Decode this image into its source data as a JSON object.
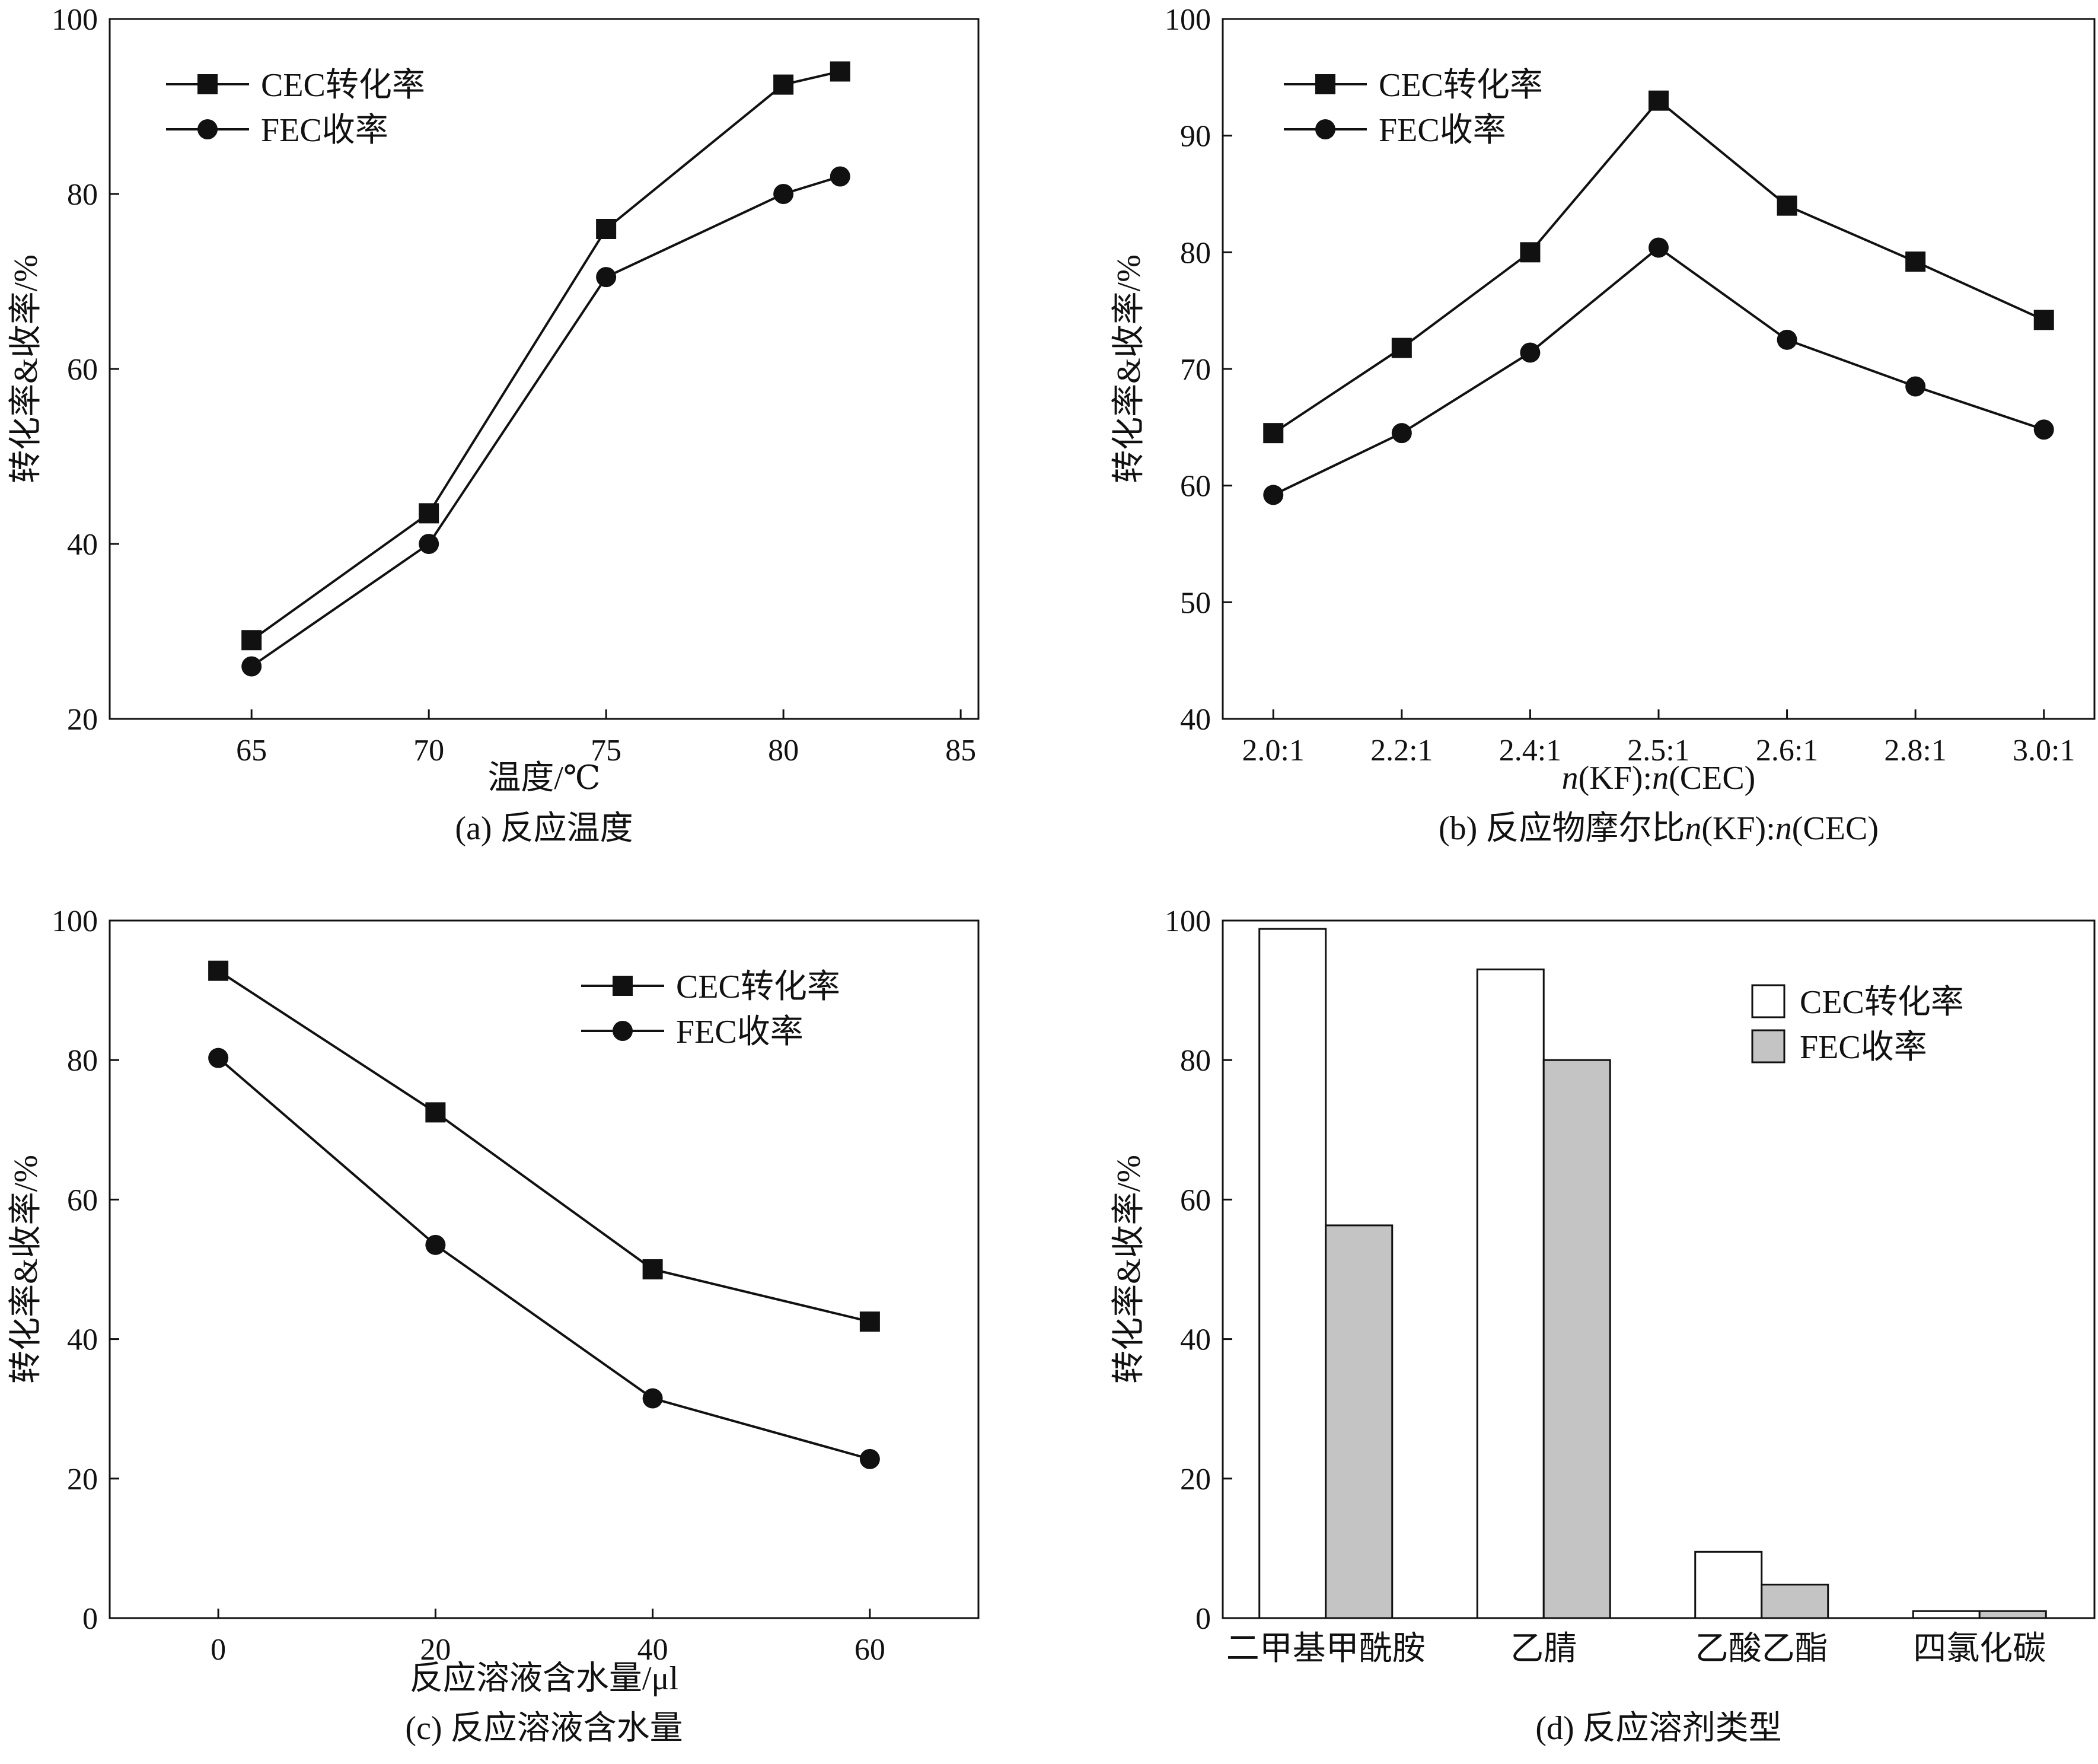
{
  "colors": {
    "line": "#111111",
    "bar_cec": "#ffffff",
    "bar_fec": "#c4c4c4"
  },
  "chart_data": [
    {
      "type": "line",
      "caption": "(a) 反应温度",
      "xlabel": "温度/℃",
      "ylabel": "转化率&收率/%",
      "xlim": [
        61,
        85.5
      ],
      "ylim": [
        20,
        100
      ],
      "xticks": [
        "65",
        "70",
        "75",
        "80",
        "85"
      ],
      "yticks": [
        "20",
        "40",
        "60",
        "80",
        "100"
      ],
      "legend_position": "top-left",
      "series": [
        {
          "name": "CEC转化率",
          "marker": "square",
          "x": [
            65,
            70,
            75,
            80,
            81.6
          ],
          "y": [
            29,
            43.5,
            76,
            92.5,
            94
          ]
        },
        {
          "name": "FEC收率",
          "marker": "circle",
          "x": [
            65,
            70,
            75,
            80,
            81.6
          ],
          "y": [
            26,
            40,
            70.5,
            80,
            82
          ]
        }
      ]
    },
    {
      "type": "line",
      "caption": "(b) 反应物摩尔比n(KF):n(CEC)",
      "xlabel": "n(KF):n(CEC)",
      "ylabel": "转化率&收率/%",
      "categories": [
        "2.0:1",
        "2.2:1",
        "2.4:1",
        "2.5:1",
        "2.6:1",
        "2.8:1",
        "3.0:1"
      ],
      "ylim": [
        40,
        100
      ],
      "yticks": [
        "40",
        "50",
        "60",
        "70",
        "80",
        "90",
        "100"
      ],
      "legend_position": "top-left",
      "series": [
        {
          "name": "CEC转化率",
          "marker": "square",
          "values": [
            64.5,
            71.8,
            80,
            93,
            84,
            79.2,
            74.2
          ]
        },
        {
          "name": "FEC收率",
          "marker": "circle",
          "values": [
            59.2,
            64.5,
            71.4,
            80.4,
            72.5,
            68.5,
            64.8
          ]
        }
      ]
    },
    {
      "type": "line",
      "caption": "(c) 反应溶液含水量",
      "xlabel": "反应溶液含水量/μl",
      "ylabel": "转化率&收率/%",
      "xlim": [
        -10,
        70
      ],
      "ylim": [
        0,
        100
      ],
      "xticks": [
        "0",
        "20",
        "40",
        "60"
      ],
      "yticks": [
        "0",
        "20",
        "40",
        "60",
        "80",
        "100"
      ],
      "legend_position": "top-right",
      "series": [
        {
          "name": "CEC转化率",
          "marker": "square",
          "x": [
            0,
            20,
            40,
            60
          ],
          "y": [
            92.8,
            72.5,
            50,
            42.5
          ]
        },
        {
          "name": "FEC收率",
          "marker": "circle",
          "x": [
            0,
            20,
            40,
            60
          ],
          "y": [
            80.3,
            53.5,
            31.5,
            22.8
          ]
        }
      ]
    },
    {
      "type": "bar",
      "caption": "(d) 反应溶剂类型",
      "xlabel": "",
      "ylabel": "转化率&收率/%",
      "categories": [
        "二甲基甲酰胺",
        "乙腈",
        "乙酸乙酯",
        "四氯化碳"
      ],
      "ylim": [
        0,
        100
      ],
      "yticks": [
        "0",
        "20",
        "40",
        "60",
        "80",
        "100"
      ],
      "legend_position": "top-right",
      "series": [
        {
          "name": "CEC转化率",
          "values": [
            98.8,
            93,
            9.5,
            1
          ]
        },
        {
          "name": "FEC收率",
          "values": [
            56.3,
            80,
            4.8,
            1
          ]
        }
      ]
    }
  ]
}
